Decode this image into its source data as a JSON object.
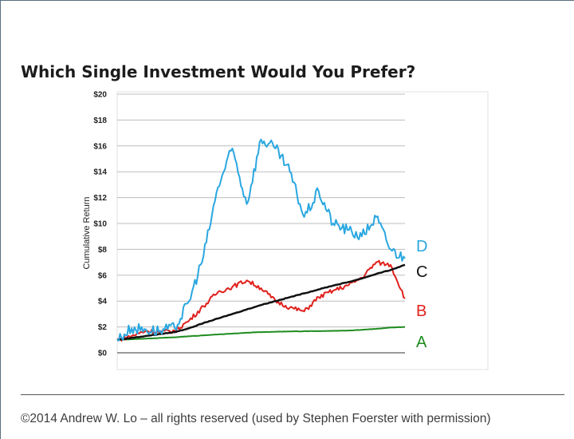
{
  "slide": {
    "title": "Which Single Investment Would You Prefer?",
    "footer": "©2014 Andrew W. Lo – all rights reserved (used by Stephen Foerster with permission)"
  },
  "chart_data": {
    "type": "line",
    "title": "Which Single Investment Would You Prefer?",
    "xlabel": "",
    "ylabel": "Cumulative Return",
    "ylim": [
      0,
      20
    ],
    "yticks": [
      "$0",
      "$2",
      "$4",
      "$6",
      "$8",
      "$10",
      "$12",
      "$14",
      "$16",
      "$18",
      "$20"
    ],
    "grid": true,
    "legend": "direct labels at right end of lines",
    "x": [
      0,
      0.05,
      0.1,
      0.15,
      0.2,
      0.25,
      0.3,
      0.35,
      0.4,
      0.45,
      0.5,
      0.55,
      0.6,
      0.65,
      0.7,
      0.75,
      0.8,
      0.85,
      0.9,
      0.95,
      1.0
    ],
    "series": [
      {
        "name": "A",
        "color": "#1e8c1e",
        "values": [
          1.0,
          1.05,
          1.1,
          1.15,
          1.2,
          1.28,
          1.35,
          1.42,
          1.48,
          1.55,
          1.6,
          1.63,
          1.65,
          1.67,
          1.68,
          1.7,
          1.72,
          1.78,
          1.85,
          1.95,
          2.0
        ]
      },
      {
        "name": "B",
        "color": "#e0201c",
        "values": [
          1.0,
          1.3,
          1.7,
          1.6,
          1.7,
          2.5,
          3.6,
          4.7,
          5.1,
          5.6,
          5.0,
          4.0,
          3.5,
          3.2,
          4.3,
          4.8,
          5.2,
          5.8,
          7.0,
          6.8,
          4.2
        ]
      },
      {
        "name": "C",
        "color": "#111111",
        "values": [
          1.0,
          1.15,
          1.3,
          1.45,
          1.6,
          1.9,
          2.3,
          2.65,
          3.0,
          3.35,
          3.7,
          4.0,
          4.3,
          4.6,
          4.9,
          5.2,
          5.45,
          5.75,
          6.1,
          6.4,
          6.8
        ]
      },
      {
        "name": "D",
        "color": "#2aa7e0",
        "values": [
          1.0,
          1.9,
          1.8,
          1.7,
          1.9,
          4.0,
          7.5,
          12.8,
          15.8,
          11.5,
          16.5,
          15.8,
          14.0,
          10.5,
          12.5,
          10.0,
          9.5,
          9.0,
          10.5,
          8.0,
          7.3
        ]
      }
    ]
  }
}
